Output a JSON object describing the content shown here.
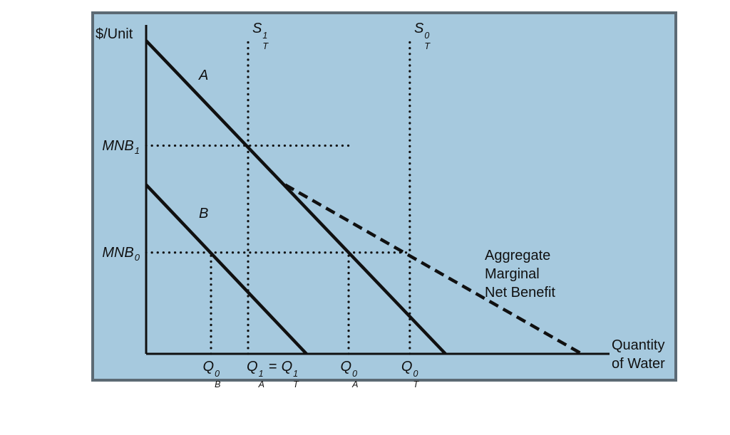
{
  "colors": {
    "panel_bg": "#a6c9de",
    "panel_border": "#5c6a74",
    "line": "#101010",
    "text": "#101010"
  },
  "labels": {
    "y_axis": "$/Unit",
    "x_axis_line1": "Quantity",
    "x_axis_line2": "of Water",
    "curve_a": "A",
    "curve_b": "B",
    "aggregate_line1": "Aggregate",
    "aggregate_line2": "Marginal",
    "aggregate_line3": "Net Benefit",
    "eq": "=",
    "s1": {
      "base": "S",
      "sup": "1",
      "sub": "T"
    },
    "s0": {
      "base": "S",
      "sup": "0",
      "sub": "T"
    },
    "mnb1": {
      "base": "MNB",
      "sub": "1"
    },
    "mnb0": {
      "base": "MNB",
      "sub": "0"
    },
    "qb0": {
      "base": "Q",
      "sup": "0",
      "sub": "B"
    },
    "qa1": {
      "base": "Q",
      "sup": "1",
      "sub": "A"
    },
    "qt1": {
      "base": "Q",
      "sup": "1",
      "sub": "T"
    },
    "qa0": {
      "base": "Q",
      "sup": "0",
      "sub": "A"
    },
    "qt0": {
      "base": "Q",
      "sup": "0",
      "sub": "T"
    }
  },
  "chart_data": {
    "type": "line",
    "title": "",
    "xlabel": "Quantity of Water",
    "ylabel": "$/Unit",
    "x_range": [
      0,
      1
    ],
    "y_range": [
      0,
      1
    ],
    "grid": false,
    "series": [
      {
        "name": "individual-marginal-net-benefit-A",
        "label": "A",
        "style": "solid",
        "points": [
          [
            0,
            0.952
          ],
          [
            0.646,
            0
          ]
        ]
      },
      {
        "name": "individual-marginal-net-benefit-B",
        "label": "B",
        "style": "solid",
        "points": [
          [
            0,
            0.514
          ],
          [
            0.346,
            0
          ]
        ]
      },
      {
        "name": "aggregate-marginal-net-benefit",
        "label": "Aggregate Marginal Net Benefit",
        "style": "dashed",
        "points": [
          [
            0.3,
            0.514
          ],
          [
            0.94,
            0
          ]
        ]
      }
    ],
    "reference_lines": [
      {
        "name": "supply-s-t-1",
        "orientation": "vertical",
        "style": "dotted",
        "x": 0.22,
        "y_from": 0,
        "y_to": 0.955
      },
      {
        "name": "supply-s-t-0",
        "orientation": "vertical",
        "style": "dotted",
        "x": 0.569,
        "y_from": 0,
        "y_to": 0.955
      },
      {
        "name": "price-mnb-1",
        "orientation": "horizontal",
        "style": "dotted",
        "y": 0.633,
        "x_from": 0,
        "x_to": 0.44
      },
      {
        "name": "price-mnb-0",
        "orientation": "horizontal",
        "style": "dotted",
        "y": 0.308,
        "x_from": 0,
        "x_to": 0.569
      },
      {
        "name": "dropline-q-b-0",
        "orientation": "vertical",
        "style": "dotted",
        "x": 0.14,
        "y_from": 0,
        "y_to": 0.308
      },
      {
        "name": "dropline-q-a-0",
        "orientation": "vertical",
        "style": "dotted",
        "x": 0.437,
        "y_from": 0,
        "y_to": 0.308
      }
    ],
    "x_tick_labels": [
      "Q_B^0",
      "Q_A^1 = Q_T^1",
      "Q_A^0",
      "Q_T^0"
    ],
    "x_tick_positions": [
      0.14,
      0.22,
      0.437,
      0.569
    ],
    "annotations": [
      "S_T^1",
      "S_T^0",
      "MNB_1",
      "MNB_0",
      "Aggregate Marginal Net Benefit"
    ]
  }
}
